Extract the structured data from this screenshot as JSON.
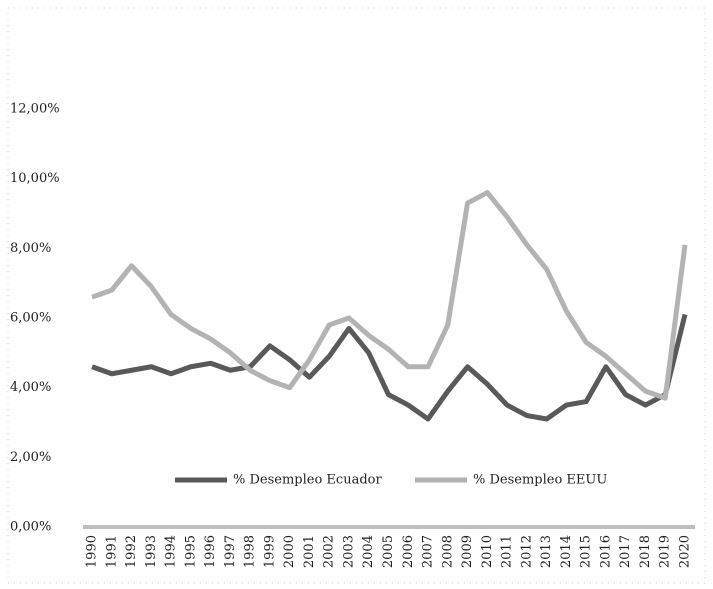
{
  "chart_data": {
    "type": "line",
    "categories": [
      "1990",
      "1991",
      "1992",
      "1993",
      "1994",
      "1995",
      "1996",
      "1997",
      "1998",
      "1999",
      "2000",
      "2001",
      "2002",
      "2003",
      "2004",
      "2005",
      "2006",
      "2007",
      "2008",
      "2009",
      "2010",
      "2011",
      "2012",
      "2013",
      "2014",
      "2015",
      "2016",
      "2017",
      "2018",
      "2019",
      "2020"
    ],
    "series": [
      {
        "name": "% Desempleo Ecuador",
        "color": "#595959",
        "values": [
          4.6,
          4.4,
          4.5,
          4.6,
          4.4,
          4.6,
          4.7,
          4.5,
          4.6,
          5.2,
          4.8,
          4.3,
          4.9,
          5.7,
          5.0,
          3.8,
          3.5,
          3.1,
          3.9,
          4.6,
          4.1,
          3.5,
          3.2,
          3.1,
          3.5,
          3.6,
          4.6,
          3.8,
          3.5,
          3.8,
          6.1
        ]
      },
      {
        "name": "% Desempleo EEUU",
        "color": "#b3b3b3",
        "values": [
          6.6,
          6.8,
          7.5,
          6.9,
          6.1,
          5.7,
          5.4,
          5.0,
          4.5,
          4.2,
          4.0,
          4.8,
          5.8,
          6.0,
          5.5,
          5.1,
          4.6,
          4.6,
          5.8,
          9.3,
          9.6,
          8.9,
          8.1,
          7.4,
          6.2,
          5.3,
          4.9,
          4.4,
          3.9,
          3.7,
          8.1
        ]
      }
    ],
    "ylim": [
      0,
      12
    ],
    "yticks": [
      {
        "value": 0,
        "label": "0,00%"
      },
      {
        "value": 2,
        "label": "2,00%"
      },
      {
        "value": 4,
        "label": "4,00%"
      },
      {
        "value": 6,
        "label": "6,00%"
      },
      {
        "value": 8,
        "label": "8,00%"
      },
      {
        "value": 10,
        "label": "10,00%"
      },
      {
        "value": 12,
        "label": "12,00%"
      }
    ],
    "legend": "bottom"
  }
}
